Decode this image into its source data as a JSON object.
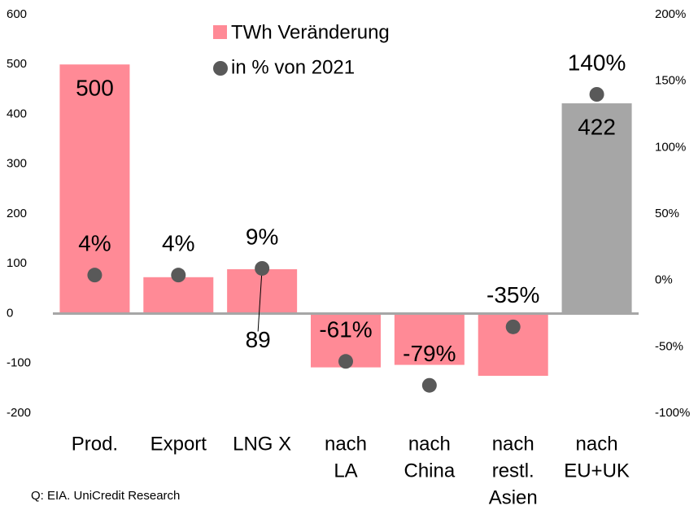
{
  "chart_data": {
    "type": "bar_dot",
    "categories": [
      [
        "Prod."
      ],
      [
        "Export"
      ],
      [
        "LNG X"
      ],
      [
        "nach",
        "LA"
      ],
      [
        "nach",
        "China"
      ],
      [
        "nach",
        "restl.",
        "Asien"
      ],
      [
        "nach",
        "EU+UK"
      ]
    ],
    "series": [
      {
        "name": "TWh Veränderung",
        "colors": [
          "#ff8a96",
          "#ff8a96",
          "#ff8a96",
          "#ff8a96",
          "#ff8a96",
          "#ff8a96",
          "#a6a6a6"
        ],
        "values": [
          500,
          73,
          89,
          -108,
          -103,
          -125,
          422
        ],
        "show_value_label": [
          true,
          false,
          true,
          false,
          false,
          false,
          true
        ]
      },
      {
        "name": "in % von 2021",
        "color": "#595959",
        "axis": "y2",
        "values": [
          4,
          4,
          9,
          -61,
          -79,
          -35,
          140
        ],
        "value_labels": [
          "4%",
          "4%",
          "9%",
          "-61%",
          "-79%",
          "-35%",
          "140%"
        ]
      }
    ],
    "ylim": [
      -200,
      600
    ],
    "yticks": [
      -200,
      -100,
      0,
      100,
      200,
      300,
      400,
      500,
      600
    ],
    "y2lim": [
      -100,
      200
    ],
    "y2ticks": [
      {
        "value": -100,
        "label": "-100%"
      },
      {
        "value": -50,
        "label": "-50%"
      },
      {
        "value": 0,
        "label": "0%"
      },
      {
        "value": 50,
        "label": "50%"
      },
      {
        "value": 100,
        "label": "100%"
      },
      {
        "value": 150,
        "label": "150%"
      },
      {
        "value": 200,
        "label": "200%"
      }
    ],
    "source": "Q: EIA. UniCredit Research"
  }
}
